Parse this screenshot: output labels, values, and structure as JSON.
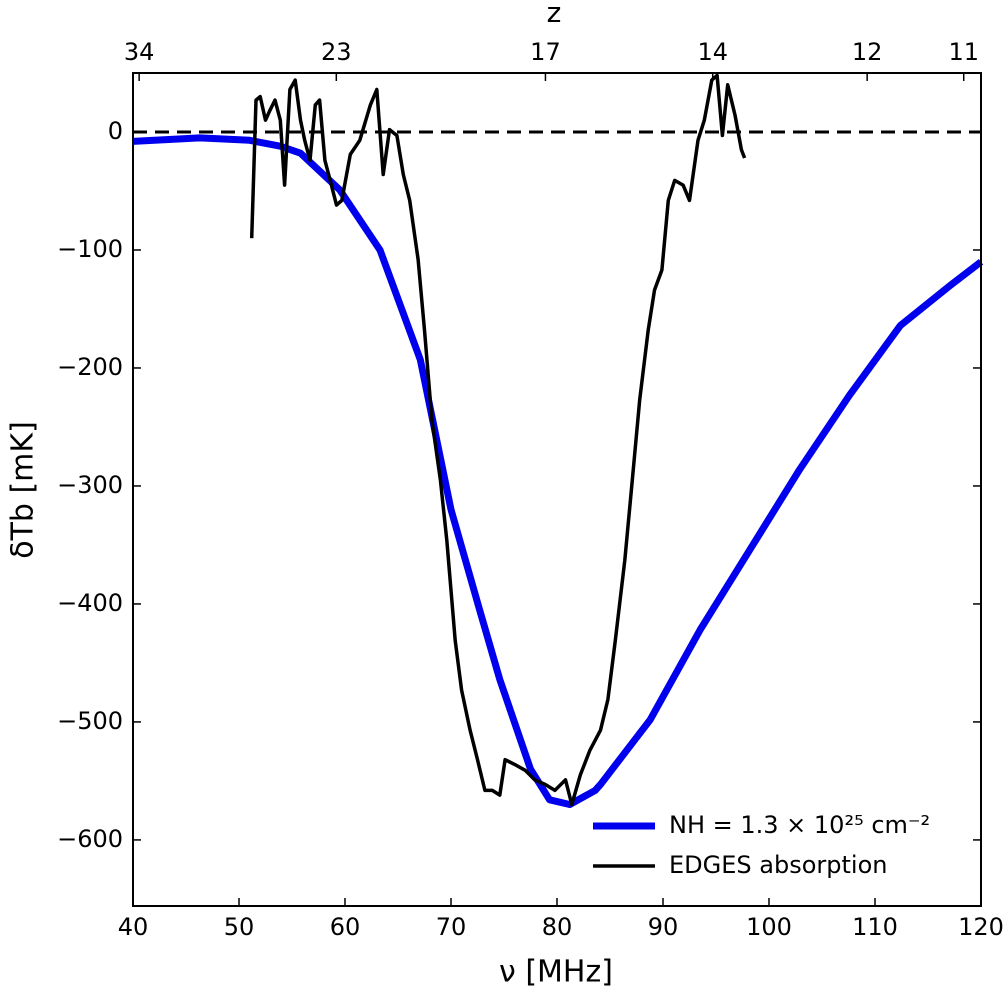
{
  "chart_data": {
    "type": "line",
    "xlabel": "ν [MHz]",
    "ylabel": "δTb [mK]",
    "x2label": "z",
    "xlim": [
      40,
      120
    ],
    "xticks": [
      40,
      50,
      60,
      70,
      80,
      90,
      100,
      110,
      120
    ],
    "ylim": [
      -656,
      50
    ],
    "yticks": [
      {
        "value": -600,
        "label": "−600"
      },
      {
        "value": -500,
        "label": "−500"
      },
      {
        "value": -400,
        "label": "−400"
      },
      {
        "value": -300,
        "label": "−300"
      },
      {
        "value": -200,
        "label": "−200"
      },
      {
        "value": -100,
        "label": "−100"
      },
      0
    ],
    "x2ticks": [
      {
        "value": 40.58,
        "label": "34"
      },
      {
        "value": 59.18,
        "label": "23"
      },
      {
        "value": 78.91,
        "label": "17"
      },
      {
        "value": 94.69,
        "label": "14"
      },
      {
        "value": 109.26,
        "label": "12"
      },
      {
        "value": 118.37,
        "label": "11"
      }
    ],
    "reference_line": 0,
    "legend": "lower right",
    "series": [
      {
        "name": "NH = 1.3 × 10²⁵ cm⁻²",
        "color": "#0000ee",
        "width": 7,
        "x": [
          40,
          46.3,
          51,
          53.9,
          55.8,
          59.5,
          63.3,
          67.1,
          70,
          72.7,
          74.6,
          77.5,
          79.3,
          81.2,
          83.6,
          84.1,
          88.8,
          93.5,
          98.2,
          102.9,
          107.6,
          112.4,
          117.1,
          120
        ],
        "values": [
          -8,
          -5,
          -7,
          -12,
          -18,
          -49,
          -100,
          -193,
          -320,
          -405,
          -464,
          -540,
          -566,
          -570,
          -558,
          -553,
          -498,
          -422,
          -354,
          -286,
          -223,
          -164,
          -130,
          -110
        ]
      },
      {
        "name": "EDGES absorption",
        "color": "#000000",
        "width": 3.5,
        "x": [
          51.2,
          51.6,
          52.0,
          52.5,
          52.9,
          53.4,
          53.9,
          54.3,
          54.8,
          55.3,
          55.8,
          56.2,
          56.7,
          57.2,
          57.6,
          58.1,
          58.6,
          59.2,
          59.7,
          60.5,
          61.4,
          62.4,
          63.0,
          63.6,
          64.2,
          64.9,
          65.5,
          66.1,
          66.9,
          67.5,
          68.2,
          69.0,
          69.6,
          70.4,
          71.0,
          71.8,
          72.5,
          73.2,
          73.9,
          74.6,
          75.1,
          76.0,
          77.0,
          77.9,
          78.9,
          79.8,
          80.8,
          81.4,
          82.2,
          83.1,
          84.1,
          84.8,
          85.5,
          86.4,
          87.1,
          87.8,
          88.6,
          89.2,
          89.9,
          90.5,
          91.1,
          91.9,
          92.5,
          93.3,
          93.9,
          94.6,
          95.1,
          95.6,
          96.1,
          96.8,
          97.4,
          97.7
        ],
        "values": [
          -90,
          27,
          30,
          10,
          18,
          27,
          10,
          -45,
          36,
          44,
          10,
          -7,
          -24,
          23,
          27,
          -24,
          -41,
          -62,
          -58,
          -19,
          -7,
          23,
          36,
          -36,
          2,
          -3,
          -36,
          -58,
          -108,
          -168,
          -244,
          -295,
          -346,
          -431,
          -473,
          -507,
          -532,
          -558,
          -558,
          -562,
          -532,
          -536,
          -541,
          -549,
          -553,
          -558,
          -549,
          -570,
          -545,
          -524,
          -507,
          -481,
          -431,
          -363,
          -295,
          -227,
          -168,
          -134,
          -117,
          -58,
          -41,
          -45,
          -58,
          -7,
          10,
          44,
          48,
          -3,
          40,
          14,
          -15,
          -22
        ]
      }
    ]
  }
}
